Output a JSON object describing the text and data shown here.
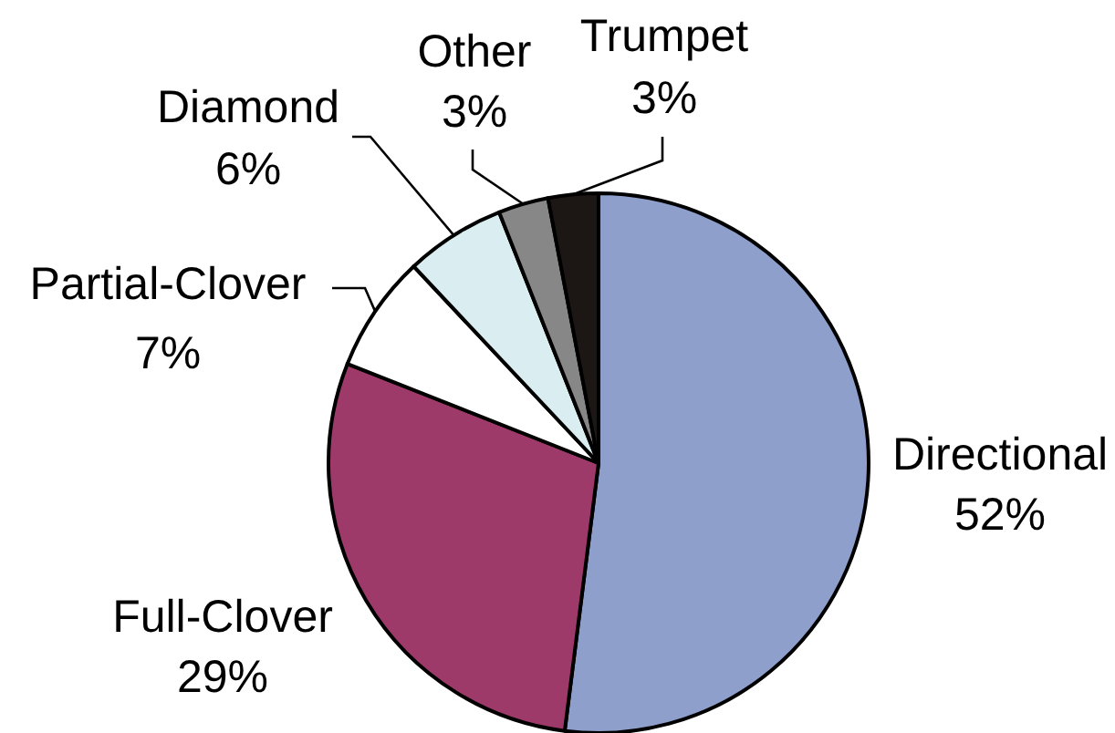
{
  "chart_data": {
    "type": "pie",
    "categories": [
      "Directional",
      "Full-Clover",
      "Partial-Clover",
      "Diamond",
      "Other",
      "Trumpet"
    ],
    "values": [
      52,
      29,
      7,
      6,
      3,
      3
    ],
    "value_labels": [
      "52%",
      "29%",
      "7%",
      "6%",
      "3%",
      "3%"
    ],
    "colors": [
      "#8f9fcc",
      "#9e3a6a",
      "#ffffff",
      "#daedf0",
      "#878787",
      "#1c1714"
    ]
  }
}
